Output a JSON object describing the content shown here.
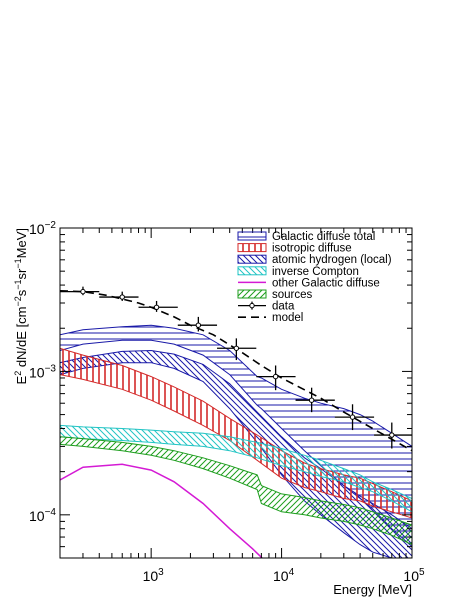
{
  "chart_data": {
    "type": "line",
    "x_scale": "log",
    "y_scale": "log",
    "xlim": [
      200,
      100000
    ],
    "ylim": [
      5e-05,
      0.01
    ],
    "x_axis": {
      "title": "Energy [MeV]",
      "ticks": [
        {
          "value": 1000,
          "base": "10",
          "exp": "3"
        },
        {
          "value": 10000,
          "base": "10",
          "exp": "4"
        },
        {
          "value": 100000,
          "base": "10",
          "exp": "5"
        }
      ]
    },
    "y_axis": {
      "title_parts": [
        {
          "t": "E",
          "s": "normal"
        },
        {
          "t": "2",
          "s": "sup"
        },
        {
          "t": " dN/dE [cm",
          "s": "normal"
        },
        {
          "t": "−2",
          "s": "sup"
        },
        {
          "t": "s",
          "s": "normal"
        },
        {
          "t": "−1",
          "s": "sup"
        },
        {
          "t": "sr",
          "s": "normal"
        },
        {
          "t": "−1",
          "s": "sup"
        },
        {
          "t": "MeV]",
          "s": "normal"
        }
      ],
      "ticks": [
        {
          "value": 0.0001,
          "base": "10",
          "exp": "−4"
        },
        {
          "value": 0.001,
          "base": "10",
          "exp": "−3"
        },
        {
          "value": 0.01,
          "base": "10",
          "exp": "−2"
        }
      ]
    },
    "grid": false,
    "legend_position": "top-right",
    "bands": [
      {
        "name": "Galactic diffuse total",
        "color": "#1a1aa8",
        "hatch": "horizontal",
        "x": [
          200,
          300,
          600,
          1000,
          1500,
          2500,
          4000,
          6500,
          7000,
          10000,
          15000,
          20000,
          30000,
          40000,
          50000,
          70000,
          100000
        ],
        "lower": [
          0.0014,
          0.00155,
          0.00165,
          0.00165,
          0.00155,
          0.0013,
          0.00095,
          0.00058,
          0.00055,
          0.0004,
          0.00028,
          0.00022,
          0.00016,
          0.00013,
          0.00011,
          8e-05,
          6e-05
        ],
        "upper": [
          0.0018,
          0.00195,
          0.00205,
          0.0021,
          0.002,
          0.0018,
          0.0014,
          0.00092,
          0.0009,
          0.00075,
          0.00065,
          0.0006,
          0.00055,
          0.0005,
          0.00045,
          0.00037,
          0.0003
        ]
      },
      {
        "name": "isotropic diffuse",
        "color": "#d42a2a",
        "hatch": "vertical",
        "x": [
          200,
          300,
          600,
          1000,
          1500,
          2500,
          4000,
          6500,
          10000,
          15000,
          20000,
          30000,
          40000,
          50000,
          70000,
          100000
        ],
        "lower": [
          0.00095,
          0.00088,
          0.00075,
          0.00063,
          0.00053,
          0.00042,
          0.00033,
          0.00024,
          0.00018,
          0.000155,
          0.000145,
          0.00013,
          0.000125,
          0.000115,
          0.000105,
          9.5e-05
        ],
        "upper": [
          0.00145,
          0.0013,
          0.0011,
          0.00092,
          0.00078,
          0.00062,
          0.00047,
          0.00036,
          0.00028,
          0.00023,
          0.00021,
          0.00019,
          0.00018,
          0.000165,
          0.000145,
          0.000125
        ]
      },
      {
        "name": "atomic hydrogen (local)",
        "color": "#1a1aa8",
        "hatch": "diagonal-down",
        "x": [
          200,
          300,
          600,
          1000,
          1500,
          2500,
          4000,
          6500,
          10000,
          15000,
          20000,
          30000,
          40000,
          50000,
          70000,
          100000
        ],
        "lower": [
          0.00095,
          0.00105,
          0.00115,
          0.00115,
          0.00105,
          0.00085,
          0.00055,
          0.00032,
          0.00019,
          0.000125,
          0.0001,
          7.5e-05,
          6.2e-05,
          5.5e-05,
          5e-05,
          5e-05
        ],
        "upper": [
          0.00115,
          0.00125,
          0.00138,
          0.0014,
          0.00132,
          0.00112,
          0.00082,
          0.00052,
          0.00035,
          0.00025,
          0.00021,
          0.00016,
          0.000135,
          0.00012,
          0.0001,
          8e-05
        ]
      },
      {
        "name": "inverse Compton",
        "color": "#22c4c4",
        "hatch": "diagonal-down",
        "x": [
          200,
          300,
          600,
          1000,
          1500,
          2500,
          4000,
          6500,
          10000,
          15000,
          20000,
          30000,
          40000,
          50000,
          70000,
          100000
        ],
        "lower": [
          0.00035,
          0.00034,
          0.00033,
          0.00032,
          0.00031,
          0.0003,
          0.00028,
          0.00025,
          0.00022,
          0.0002,
          0.000185,
          0.00017,
          0.000155,
          0.000145,
          0.000125,
          0.000105
        ],
        "upper": [
          0.00042,
          0.00041,
          0.0004,
          0.00039,
          0.00038,
          0.00037,
          0.00035,
          0.00032,
          0.00029,
          0.00026,
          0.00024,
          0.00021,
          0.00019,
          0.00017,
          0.00015,
          0.00013
        ]
      },
      {
        "name": "other Galactic diffuse",
        "color": "#d41ad4",
        "hatch": "none",
        "x": [
          200,
          300,
          600,
          1000,
          1500,
          2500,
          4000,
          6000,
          8000,
          10000
        ],
        "y": [
          0.000175,
          0.000215,
          0.000225,
          0.000205,
          0.00017,
          0.00012,
          8e-05,
          5.8e-05,
          4.5e-05,
          3.8e-05
        ]
      },
      {
        "name": "sources",
        "color": "#1e9e1e",
        "hatch": "diagonal-up",
        "x": [
          200,
          300,
          600,
          1000,
          1500,
          2500,
          4000,
          6500,
          7000,
          10000,
          15000,
          20000,
          30000,
          40000,
          50000,
          70000,
          100000
        ],
        "lower": [
          0.00031,
          0.0003,
          0.00028,
          0.00026,
          0.00024,
          0.00021,
          0.00018,
          0.00015,
          0.00012,
          0.000105,
          0.0001,
          9.5e-05,
          9e-05,
          8.5e-05,
          8e-05,
          7.2e-05,
          6.2e-05
        ],
        "upper": [
          0.00035,
          0.00034,
          0.00032,
          0.0003,
          0.00028,
          0.00025,
          0.00022,
          0.00019,
          0.00016,
          0.00014,
          0.000132,
          0.000125,
          0.000118,
          0.000112,
          0.000105,
          9.5e-05,
          8.5e-05
        ]
      }
    ],
    "data_points": {
      "name": "data",
      "x": [
        300,
        600,
        1100,
        2300,
        4500,
        9000,
        17000,
        35000,
        70000
      ],
      "y": [
        0.0036,
        0.0033,
        0.0028,
        0.0021,
        0.00145,
        0.00092,
        0.00063,
        0.00048,
        0.00036
      ],
      "x_err_low": [
        200,
        400,
        800,
        1600,
        3200,
        6400,
        12800,
        25600,
        51200
      ],
      "x_err_high": [
        400,
        800,
        1600,
        3200,
        6400,
        12800,
        25600,
        51200,
        102400
      ],
      "y_err_low": [
        0.0034,
        0.0031,
        0.0026,
        0.0019,
        0.0012,
        0.00074,
        0.00052,
        0.00039,
        0.00029
      ],
      "y_err_high": [
        0.0039,
        0.0036,
        0.0031,
        0.0024,
        0.0017,
        0.0011,
        0.00077,
        0.00059,
        0.00044
      ]
    },
    "model": {
      "name": "model",
      "style": "dashed",
      "x": [
        200,
        300,
        450,
        600,
        800,
        1000,
        1500,
        2000,
        3000,
        5000,
        7000,
        10000,
        20000,
        30000,
        50000,
        100000
      ],
      "y": [
        0.00365,
        0.0036,
        0.0034,
        0.0032,
        0.003,
        0.0028,
        0.0024,
        0.0021,
        0.0018,
        0.00135,
        0.0011,
        0.0009,
        0.00065,
        0.00052,
        0.0004,
        0.00028
      ]
    },
    "legend": [
      {
        "label": "Galactic diffuse total",
        "kind": "band",
        "ref": 0
      },
      {
        "label": "isotropic diffuse",
        "kind": "band",
        "ref": 1
      },
      {
        "label": "atomic hydrogen (local)",
        "kind": "band",
        "ref": 2
      },
      {
        "label": "inverse Compton",
        "kind": "band",
        "ref": 3
      },
      {
        "label": "other Galactic diffuse",
        "kind": "line",
        "color": "#d41ad4"
      },
      {
        "label": "sources",
        "kind": "band",
        "ref": 5
      },
      {
        "label": "data",
        "kind": "marker"
      },
      {
        "label": "model",
        "kind": "dashed"
      }
    ]
  }
}
